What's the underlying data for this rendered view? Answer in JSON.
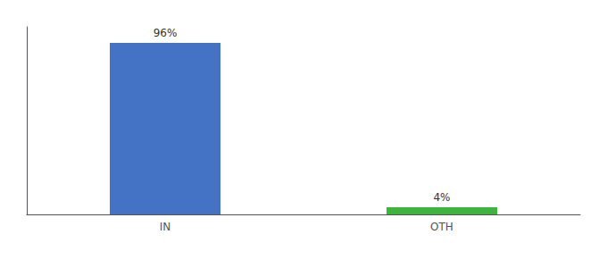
{
  "chart_data": {
    "type": "bar",
    "categories": [
      "IN",
      "OTH"
    ],
    "values": [
      96,
      4
    ],
    "value_labels": [
      "96%",
      "4%"
    ],
    "data_labels": true,
    "colors": [
      "#4472c4",
      "#3db53d"
    ],
    "ylim": [
      0,
      105
    ],
    "tick_labels": "x",
    "grid": false
  }
}
